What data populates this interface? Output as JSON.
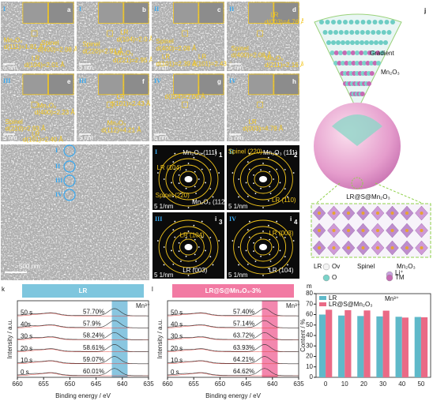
{
  "figure": {
    "panels": [
      {
        "label": "a",
        "roman": "I",
        "scale": "5 nm",
        "texts": [
          "Mn₂O₃",
          "d(111)=1.81 Å",
          "Spinel",
          "d(400)=2.08 Å",
          "LR",
          "d(104)=2.01 Å"
        ]
      },
      {
        "label": "b",
        "roman": "I",
        "scale": "5 nm",
        "texts": [
          "Spinel",
          "d(220)=2.91 Å",
          "LR",
          "d(104)=2.0 Å",
          "Mn₂O₃",
          "d(221)=2.95 Å"
        ]
      },
      {
        "label": "c",
        "roman": "II",
        "scale": "5 nm",
        "texts": [
          "Spinel",
          "d(400)=2.08 Å",
          "LR",
          "d(101)=2.39 Å",
          "LR",
          "d(101)=2.43 Å"
        ]
      },
      {
        "label": "d",
        "roman": "II",
        "scale": "5 nm",
        "texts": [
          "LR",
          "d(003)=4.76 Å",
          "Spinel",
          "d(400)=2.08 Å",
          "Mn₂O₃",
          "d(211)=2.16 Å"
        ]
      },
      {
        "label": "e",
        "roman": "III",
        "scale": "5 nm",
        "texts": [
          "Mn₂O₃",
          "d(400)=2.23 Å",
          "Spinel",
          "d(220)=2.93 Å",
          "LR",
          "d(101)=2.40 Å"
        ]
      },
      {
        "label": "f",
        "roman": "III",
        "scale": "5 nm",
        "texts": [
          "LR",
          "d(101)=2.43 Å",
          "Mn₂O₃",
          "d(112)=4.21 Å"
        ]
      },
      {
        "label": "g",
        "roman": "IV",
        "scale": "5 nm",
        "texts": [
          "d(104)=2.06 Å"
        ]
      },
      {
        "label": "h",
        "roman": "IV",
        "scale": "5 nm",
        "texts": [
          "LR",
          "d(003)=4.78 Å"
        ]
      }
    ],
    "overview": {
      "label": "i",
      "scale": "500 nm",
      "regions": [
        "I",
        "II",
        "III",
        "IV"
      ]
    },
    "diffraction": [
      {
        "label": "i",
        "index": "1",
        "roman": "I",
        "scale": "5 1/nm",
        "texts": [
          "LR (104)",
          "Mn₂O₃ (111)",
          "Spinel (220)",
          "Mn₂O₃ (112)"
        ]
      },
      {
        "label": "i",
        "index": "2",
        "roman": "II",
        "scale": "5 1/nm",
        "texts": [
          "Spinel (220)",
          "Mn₂O₃ (111)",
          "LR (110)"
        ]
      },
      {
        "label": "i",
        "index": "3",
        "roman": "III",
        "scale": "5 1/nm",
        "texts": [
          "LR (104)",
          "LR (003)"
        ]
      },
      {
        "label": "i",
        "index": "4",
        "roman": "IV",
        "scale": "5 1/nm",
        "texts": [
          "LR (003)",
          "LR (104)"
        ]
      }
    ],
    "schematic": {
      "label": "j",
      "texts": [
        "Gradient",
        "Mn₂O₃",
        "LR@S@Mn₂O₃"
      ],
      "legend": [
        "LR",
        "Spinel",
        "Mn₂O₃",
        "Ov",
        "Li⁺",
        "O",
        "TM"
      ]
    }
  },
  "chart_data": [
    {
      "type": "spectrum",
      "label": "k",
      "title": "LR",
      "title_color": "#7ec6de",
      "annotation": "Mn³⁺",
      "x_label": "Binding energy / eV",
      "y_label": "Intensity / a.u.",
      "xlim": [
        660,
        635
      ],
      "xticks": [
        660,
        655,
        650,
        645,
        640,
        635
      ],
      "band": [
        642,
        639
      ],
      "band_color": "#62b3d6",
      "categories": [
        "50 s",
        "40s",
        "30 s",
        "20 s",
        "10 s",
        "0 s"
      ],
      "values": [
        57.7,
        57.9,
        58.24,
        58.61,
        59.07,
        60.01
      ],
      "value_labels": [
        "57.70%",
        "57.9%",
        "58.24%",
        "58.61%",
        "59.07%",
        "60.01%"
      ]
    },
    {
      "type": "spectrum",
      "label": "l",
      "title": "LR@S@Mn₂O₃-3%",
      "title_color": "#f27aa3",
      "annotation": "Mn³⁺",
      "x_label": "Binding energy / eV",
      "y_label": "Intensity / a.u.",
      "xlim": [
        660,
        635
      ],
      "xticks": [
        660,
        655,
        650,
        645,
        640,
        635
      ],
      "band": [
        642,
        639
      ],
      "band_color": "#ef5f93",
      "categories": [
        "50 s",
        "40 s",
        "30 s",
        "20 s",
        "10 s",
        "0 s"
      ],
      "values": [
        57.4,
        57.14,
        63.72,
        63.93,
        64.21,
        64.62
      ],
      "value_labels": [
        "57.40%",
        "57.14%",
        "63.72%",
        "63.93%",
        "64.21%",
        "64.62%"
      ]
    },
    {
      "type": "bar",
      "label": "m",
      "annotation": "Mn³⁺",
      "y_label": "Content / %",
      "categories": [
        "0",
        "10",
        "20",
        "30",
        "40",
        "50"
      ],
      "series": [
        {
          "name": "LR",
          "color": "#5fb9c9",
          "values": [
            60.01,
            59.07,
            58.61,
            58.24,
            57.9,
            57.7
          ]
        },
        {
          "name": "LR@S@Mn₂O₃",
          "color": "#ea6a86",
          "values": [
            64.62,
            64.21,
            63.93,
            63.72,
            57.14,
            57.4
          ]
        }
      ],
      "ylim": [
        0,
        80
      ],
      "yticks": [
        0,
        10,
        20,
        30,
        40,
        50,
        60,
        70,
        80
      ]
    }
  ]
}
